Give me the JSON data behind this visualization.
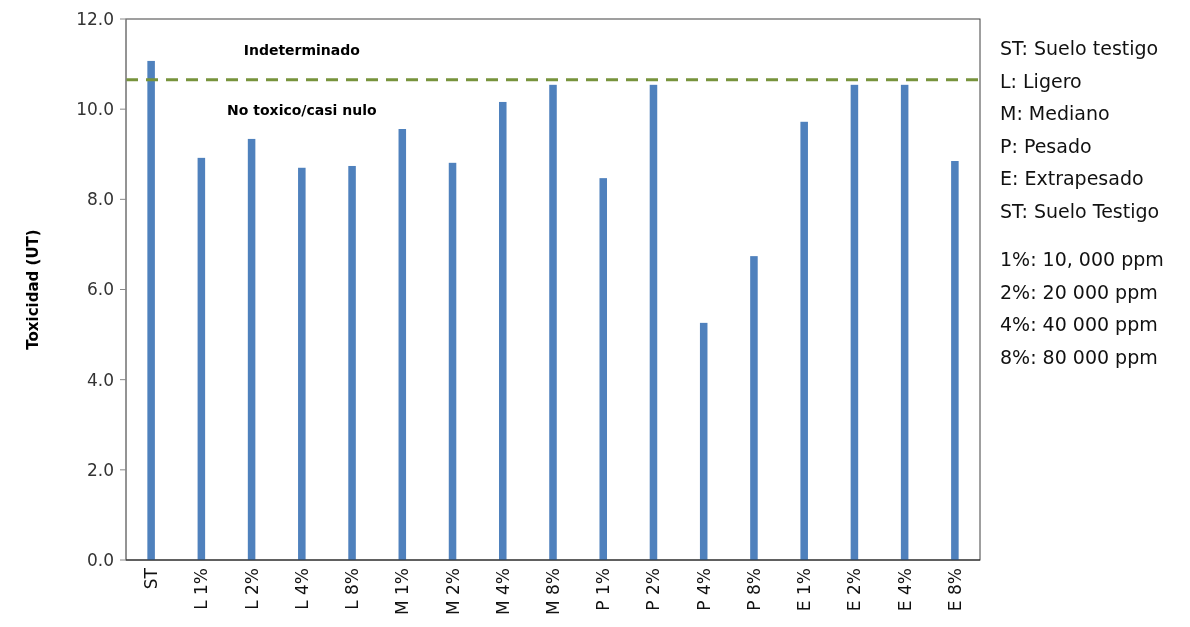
{
  "chart_data": {
    "type": "bar",
    "ylabel": "Toxicidad (UT)",
    "categories": [
      "ST",
      "L 1%",
      "L 2%",
      "L 4%",
      "L 8%",
      "M 1%",
      "M 2%",
      "M 4%",
      "M 8%",
      "P 1%",
      "P 2%",
      "P 4%",
      "P 8%",
      "E 1%",
      "E 2%",
      "E 4%",
      "E 8%"
    ],
    "values": [
      11.07,
      8.92,
      9.34,
      8.7,
      8.74,
      9.56,
      8.81,
      10.16,
      10.54,
      8.47,
      10.54,
      5.26,
      6.74,
      9.72,
      10.54,
      10.54,
      8.85
    ],
    "color": "#4f81bd",
    "ylim": [
      0,
      12
    ],
    "yticks": [
      {
        "value": 0,
        "label": "0.0"
      },
      {
        "value": 2,
        "label": "2.0"
      },
      {
        "value": 4,
        "label": "4.0"
      },
      {
        "value": 6,
        "label": "6.0"
      },
      {
        "value": 8,
        "label": "8.0"
      },
      {
        "value": 10,
        "label": "10.0"
      },
      {
        "value": 12,
        "label": "12.0"
      }
    ],
    "ref_lines": [
      {
        "axis": "y",
        "value": 10.65,
        "color": "#77933c",
        "line_style": "dashed"
      }
    ],
    "annotations": [
      "Indeterminado",
      "No toxico/casi nulo",
      "ST: Suelo testigo",
      "L: Ligero",
      "M: Mediano",
      "P: Pesado",
      "E: Extrapesado",
      "ST: Suelo Testigo",
      "1%: 10, 000 ppm",
      "2%: 20 000 ppm",
      "4%: 40 000 ppm",
      "8%: 80 000 ppm"
    ],
    "grid": false
  }
}
